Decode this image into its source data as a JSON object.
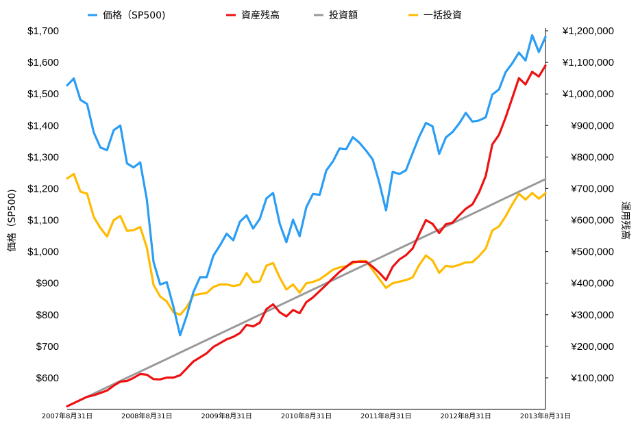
{
  "chart_data": {
    "type": "line",
    "legend_position": "top",
    "ylabel_left": "価格（SP500)",
    "ylabel_right": "運用残高",
    "y_left": {
      "min": 500,
      "max": 1700,
      "ticks": [
        "$600",
        "$700",
        "$800",
        "$900",
        "$1,000",
        "$1,100",
        "$1,200",
        "$1,300",
        "$1,400",
        "$1,500",
        "$1,600",
        "$1,700"
      ],
      "tick_values": [
        600,
        700,
        800,
        900,
        1000,
        1100,
        1200,
        1300,
        1400,
        1500,
        1600,
        1700
      ]
    },
    "y_right": {
      "min": 0,
      "max": 1200000,
      "ticks": [
        "¥100,000",
        "¥200,000",
        "¥300,000",
        "¥400,000",
        "¥500,000",
        "¥600,000",
        "¥700,000",
        "¥800,000",
        "¥900,000",
        "¥1,000,000",
        "¥1,100,000",
        "¥1,200,000"
      ],
      "tick_values": [
        100000,
        200000,
        300000,
        400000,
        500000,
        600000,
        700000,
        800000,
        900000,
        1000000,
        1100000,
        1200000
      ]
    },
    "x_ticks": [
      "2007年8月31日",
      "2008年8月31日",
      "2009年8月31日",
      "2010年8月31日",
      "2011年8月31日",
      "2012年8月31日",
      "2013年8月31日"
    ],
    "n_points": 73,
    "series": [
      {
        "name": "価格（SP500)",
        "axis": "left",
        "color": "#2a9df4",
        "values": [
          1527,
          1549,
          1481,
          1468,
          1378,
          1330,
          1322,
          1385,
          1400,
          1280,
          1267,
          1283,
          1165,
          968,
          896,
          903,
          825,
          735,
          797,
          872,
          919,
          919,
          987,
          1020,
          1057,
          1036,
          1095,
          1115,
          1073,
          1104,
          1169,
          1186,
          1089,
          1030,
          1101,
          1049,
          1141,
          1183,
          1180,
          1257,
          1286,
          1327,
          1325,
          1363,
          1345,
          1320,
          1292,
          1218,
          1131,
          1253,
          1246,
          1258,
          1312,
          1365,
          1408,
          1397,
          1310,
          1362,
          1379,
          1406,
          1440,
          1412,
          1416,
          1426,
          1498,
          1514,
          1569,
          1597,
          1631,
          1606,
          1686,
          1633,
          1681
        ]
      },
      {
        "name": "資産残高",
        "axis": "right",
        "color": "#ee1111",
        "values": [
          10000,
          20000,
          30000,
          40000,
          45000,
          52000,
          60000,
          75000,
          88000,
          90000,
          100000,
          112000,
          110000,
          96000,
          95000,
          101000,
          101000,
          108000,
          130000,
          152000,
          165000,
          178000,
          198000,
          210000,
          222000,
          230000,
          242000,
          268000,
          263000,
          275000,
          318000,
          333000,
          308000,
          295000,
          315000,
          305000,
          340000,
          355000,
          375000,
          395000,
          416000,
          436000,
          452000,
          468000,
          468000,
          468000,
          452000,
          433000,
          410000,
          452000,
          475000,
          489000,
          510000,
          556000,
          600000,
          588000,
          559000,
          587000,
          592000,
          615000,
          636000,
          650000,
          688000,
          740000,
          840000,
          870000,
          925000,
          987000,
          1050000,
          1030000,
          1070000,
          1055000,
          1090000
        ]
      },
      {
        "name": "投資額",
        "axis": "right",
        "color": "#999999",
        "values": [
          10000,
          20000,
          30000,
          40000,
          50000,
          60000,
          70000,
          80000,
          90000,
          100000,
          110000,
          120000,
          130000,
          140000,
          150000,
          160000,
          170000,
          180000,
          190000,
          200000,
          210000,
          220000,
          230000,
          240000,
          250000,
          260000,
          270000,
          280000,
          290000,
          300000,
          310000,
          320000,
          330000,
          340000,
          350000,
          360000,
          370000,
          380000,
          390000,
          400000,
          410000,
          420000,
          430000,
          440000,
          450000,
          460000,
          470000,
          480000,
          490000,
          500000,
          510000,
          520000,
          530000,
          540000,
          550000,
          560000,
          570000,
          580000,
          590000,
          600000,
          610000,
          620000,
          630000,
          640000,
          650000,
          660000,
          670000,
          680000,
          690000,
          700000,
          710000,
          720000,
          730000
        ]
      },
      {
        "name": "一括投資",
        "axis": "right",
        "color": "#ffbb00",
        "values": [
          732000,
          746000,
          690000,
          684000,
          610000,
          575000,
          548000,
          600000,
          613000,
          566000,
          568000,
          578000,
          513000,
          395000,
          358000,
          342000,
          308000,
          300000,
          324000,
          361000,
          366000,
          369000,
          388000,
          396000,
          396000,
          391000,
          395000,
          432000,
          403000,
          406000,
          456000,
          464000,
          418000,
          380000,
          396000,
          370000,
          400000,
          404000,
          412000,
          427000,
          443000,
          450000,
          454000,
          463000,
          470000,
          470000,
          442000,
          413000,
          385000,
          400000,
          405000,
          410000,
          418000,
          458000,
          488000,
          472000,
          433000,
          455000,
          452000,
          458000,
          466000,
          467000,
          486000,
          510000,
          567000,
          580000,
          612000,
          650000,
          684000,
          665000,
          686000,
          668000,
          685000
        ]
      }
    ]
  }
}
